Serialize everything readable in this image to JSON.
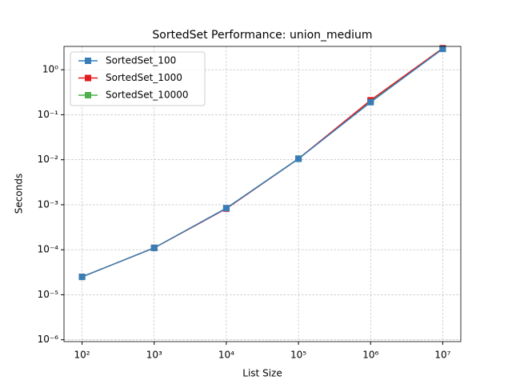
{
  "chart_data": {
    "type": "line",
    "title": "SortedSet Performance: union_medium",
    "x_label": "List Size",
    "y_label": "Seconds",
    "x": [
      100,
      1000,
      10000,
      100000,
      1000000,
      10000000
    ],
    "series": [
      {
        "name": "SortedSet_100",
        "color": "#377eb8",
        "values": [
          2.5e-05,
          0.00011,
          0.00084,
          0.0105,
          0.19,
          2.9
        ]
      },
      {
        "name": "SortedSet_1000",
        "color": "#e41a1c",
        "values": [
          2.5e-05,
          0.00011,
          0.00082,
          0.0105,
          0.21,
          3.0
        ]
      },
      {
        "name": "SortedSet_10000",
        "color": "#4daf4a",
        "values": [
          2.5e-05,
          0.00011,
          0.00083,
          0.0106,
          0.2,
          3.0
        ]
      }
    ],
    "xlog": true,
    "ylog": true,
    "xlim": [
      56.2,
      17800000
    ],
    "ylim": [
      9.1e-07,
      3.3
    ],
    "xticks": [
      {
        "value": 100,
        "label": "10²"
      },
      {
        "value": 1000,
        "label": "10³"
      },
      {
        "value": 10000,
        "label": "10⁴"
      },
      {
        "value": 100000,
        "label": "10⁵"
      },
      {
        "value": 1000000,
        "label": "10⁶"
      },
      {
        "value": 10000000,
        "label": "10⁷"
      }
    ],
    "yticks": [
      {
        "value": 1e-06,
        "label": "10⁻⁶"
      },
      {
        "value": 1e-05,
        "label": "10⁻⁵"
      },
      {
        "value": 0.0001,
        "label": "10⁻⁴"
      },
      {
        "value": 0.001,
        "label": "10⁻³"
      },
      {
        "value": 0.01,
        "label": "10⁻²"
      },
      {
        "value": 0.1,
        "label": "10⁻¹"
      },
      {
        "value": 1,
        "label": "10⁰"
      }
    ],
    "grid": true,
    "legend": "upper-left"
  }
}
